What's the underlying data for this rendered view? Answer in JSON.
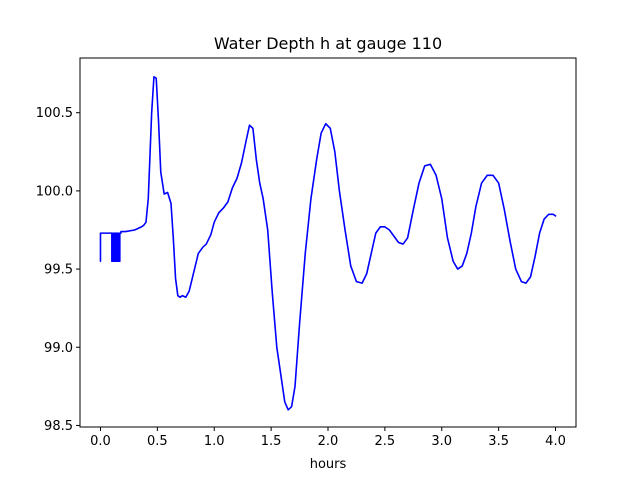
{
  "chart_data": {
    "type": "line",
    "title": "Water Depth h at gauge 110",
    "xlabel": "hours",
    "ylabel": "",
    "xlim": [
      -0.18,
      4.18
    ],
    "ylim": [
      98.49,
      100.85
    ],
    "xticks": [
      0.0,
      0.5,
      1.0,
      1.5,
      2.0,
      2.5,
      3.0,
      3.5,
      4.0
    ],
    "xtick_labels": [
      "0.0",
      "0.5",
      "1.0",
      "1.5",
      "2.0",
      "2.5",
      "3.0",
      "3.5",
      "4.0"
    ],
    "yticks": [
      98.5,
      99.0,
      99.5,
      100.0,
      100.5
    ],
    "ytick_labels": [
      "98.5",
      "99.0",
      "99.5",
      "100.0",
      "100.5"
    ],
    "grid": false,
    "series": [
      {
        "name": "",
        "color": "#0000ff",
        "x": [
          0.0,
          0.0,
          0.1,
          0.1,
          0.11,
          0.11,
          0.12,
          0.12,
          0.13,
          0.13,
          0.14,
          0.14,
          0.15,
          0.15,
          0.16,
          0.16,
          0.17,
          0.17,
          0.18,
          0.18,
          0.22,
          0.3,
          0.36,
          0.38,
          0.4,
          0.42,
          0.45,
          0.47,
          0.49,
          0.51,
          0.53,
          0.56,
          0.59,
          0.62,
          0.64,
          0.66,
          0.68,
          0.7,
          0.72,
          0.75,
          0.78,
          0.82,
          0.86,
          0.9,
          0.93,
          0.97,
          1.0,
          1.04,
          1.08,
          1.12,
          1.16,
          1.2,
          1.24,
          1.28,
          1.31,
          1.34,
          1.37,
          1.4,
          1.43,
          1.47,
          1.51,
          1.55,
          1.59,
          1.62,
          1.65,
          1.68,
          1.71,
          1.75,
          1.8,
          1.85,
          1.9,
          1.94,
          1.98,
          2.02,
          2.06,
          2.1,
          2.15,
          2.2,
          2.25,
          2.3,
          2.34,
          2.38,
          2.42,
          2.46,
          2.5,
          2.54,
          2.58,
          2.62,
          2.66,
          2.7,
          2.75,
          2.8,
          2.85,
          2.9,
          2.95,
          3.0,
          3.05,
          3.1,
          3.14,
          3.18,
          3.22,
          3.26,
          3.3,
          3.35,
          3.4,
          3.45,
          3.5,
          3.55,
          3.6,
          3.65,
          3.7,
          3.74,
          3.78,
          3.82,
          3.86,
          3.9,
          3.94,
          3.98,
          4.0
        ],
        "y": [
          99.55,
          99.73,
          99.73,
          99.55,
          99.55,
          99.73,
          99.73,
          99.55,
          99.55,
          99.73,
          99.73,
          99.55,
          99.55,
          99.73,
          99.73,
          99.55,
          99.55,
          99.73,
          99.73,
          99.74,
          99.74,
          99.75,
          99.77,
          99.78,
          99.8,
          99.95,
          100.5,
          100.73,
          100.72,
          100.45,
          100.12,
          99.98,
          99.99,
          99.92,
          99.7,
          99.44,
          99.33,
          99.32,
          99.33,
          99.32,
          99.36,
          99.48,
          99.6,
          99.64,
          99.66,
          99.72,
          99.8,
          99.86,
          99.89,
          99.93,
          100.02,
          100.08,
          100.18,
          100.32,
          100.42,
          100.4,
          100.2,
          100.05,
          99.95,
          99.75,
          99.35,
          99.0,
          98.8,
          98.65,
          98.6,
          98.62,
          98.75,
          99.15,
          99.6,
          99.95,
          100.2,
          100.37,
          100.43,
          100.4,
          100.25,
          100.0,
          99.75,
          99.52,
          99.42,
          99.41,
          99.47,
          99.6,
          99.73,
          99.77,
          99.77,
          99.75,
          99.71,
          99.67,
          99.66,
          99.7,
          99.88,
          100.05,
          100.16,
          100.17,
          100.1,
          99.95,
          99.7,
          99.55,
          99.5,
          99.52,
          99.6,
          99.73,
          99.9,
          100.05,
          100.1,
          100.1,
          100.05,
          99.88,
          99.68,
          99.5,
          99.42,
          99.41,
          99.45,
          99.58,
          99.73,
          99.82,
          99.85,
          99.85,
          99.84
        ]
      }
    ]
  }
}
